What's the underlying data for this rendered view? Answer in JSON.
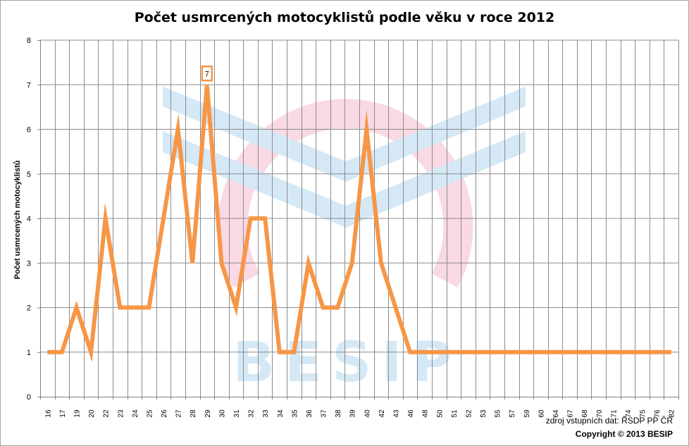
{
  "chart_data": {
    "type": "line",
    "title": "Počet usmrcených motocyklistů podle věku v roce 2012",
    "ylabel": "Počet usmrcených motocyklistů",
    "xlabel": "",
    "ylim": [
      0,
      8
    ],
    "yticks": [
      "0",
      "1",
      "2",
      "3",
      "4",
      "5",
      "6",
      "7",
      "8"
    ],
    "categories": [
      "16",
      "17",
      "19",
      "20",
      "22",
      "23",
      "24",
      "25",
      "26",
      "27",
      "28",
      "29",
      "30",
      "31",
      "32",
      "33",
      "34",
      "35",
      "36",
      "37",
      "38",
      "39",
      "40",
      "42",
      "43",
      "46",
      "48",
      "50",
      "51",
      "52",
      "53",
      "55",
      "57",
      "59",
      "60",
      "64",
      "67",
      "68",
      "70",
      "71",
      "74",
      "75",
      "76",
      "82"
    ],
    "series": [
      {
        "values": [
          1,
          1,
          2,
          1,
          4,
          2,
          2,
          2,
          4,
          6,
          3,
          7,
          3,
          2,
          4,
          4,
          1,
          1,
          3,
          2,
          2,
          3,
          6,
          3,
          2,
          1,
          1,
          1,
          1,
          1,
          1,
          1,
          1,
          1,
          1,
          1,
          1,
          1,
          1,
          1,
          1,
          1,
          1,
          1
        ]
      }
    ],
    "data_labels": [
      {
        "category": "29",
        "text": "7"
      }
    ],
    "grid": true,
    "line_color": "#f79646",
    "label_box_color": "#f79646",
    "gridline_color": "#8c8c8c"
  },
  "watermark": {
    "text": "BESIP",
    "colors": {
      "chevron": "#d5e8f5",
      "ring": "#f9d9e3"
    }
  },
  "footer": {
    "source": "zdroj vstupních dat: ŘSDP PP ČR",
    "copyright": "Copyright © 2013  BESIP"
  }
}
